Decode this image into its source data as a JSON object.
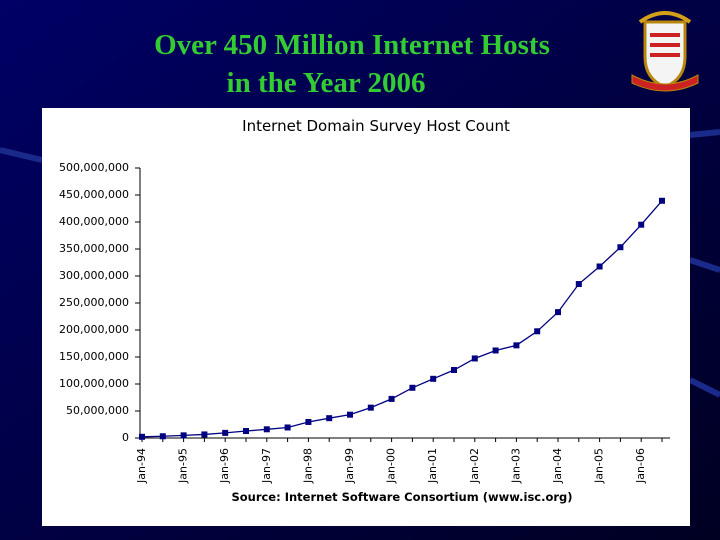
{
  "slide": {
    "title_lines": [
      "Over 450 Million Internet Hosts",
      "in the Year 2006"
    ]
  },
  "chart_data": {
    "type": "line",
    "title": "Internet Domain Survey Host Count",
    "source": "Source: Internet Software Consortium (www.isc.org)",
    "categories": [
      "Jan-94",
      null,
      "Jan-95",
      null,
      "Jan-96",
      null,
      "Jan-97",
      null,
      "Jan-98",
      null,
      "Jan-99",
      null,
      "Jan-00",
      null,
      "Jan-01",
      null,
      "Jan-02",
      null,
      "Jan-03",
      null,
      "Jan-04",
      null,
      "Jan-05",
      null,
      "Jan-06",
      null
    ],
    "series": [
      {
        "name": "Host Count",
        "color": "#000080",
        "values": [
          2200000,
          3200000,
          4900000,
          6600000,
          9500000,
          12900000,
          16100000,
          19500000,
          29700000,
          36700000,
          43200000,
          56200000,
          72400000,
          93000000,
          109600000,
          125900000,
          147300000,
          162100000,
          171600000,
          197600000,
          233100000,
          285100000,
          317600000,
          353300000,
          395000000,
          439300000
        ]
      }
    ],
    "ylim": [
      0,
      500000000
    ],
    "yticks": [
      0,
      {
        "value": 50000000,
        "label": "50,000,000"
      },
      {
        "value": 100000000,
        "label": "100,000,000"
      },
      {
        "value": 150000000,
        "label": "150,000,000"
      },
      {
        "value": 200000000,
        "label": "200,000,000"
      },
      {
        "value": 250000000,
        "label": "250,000,000"
      },
      {
        "value": 300000000,
        "label": "300,000,000"
      },
      {
        "value": 350000000,
        "label": "350,000,000"
      },
      {
        "value": 400000000,
        "label": "400,000,000"
      },
      {
        "value": 450000000,
        "label": "450,000,000"
      },
      {
        "value": 500000000,
        "label": "500,000,000"
      }
    ],
    "grid": false
  }
}
